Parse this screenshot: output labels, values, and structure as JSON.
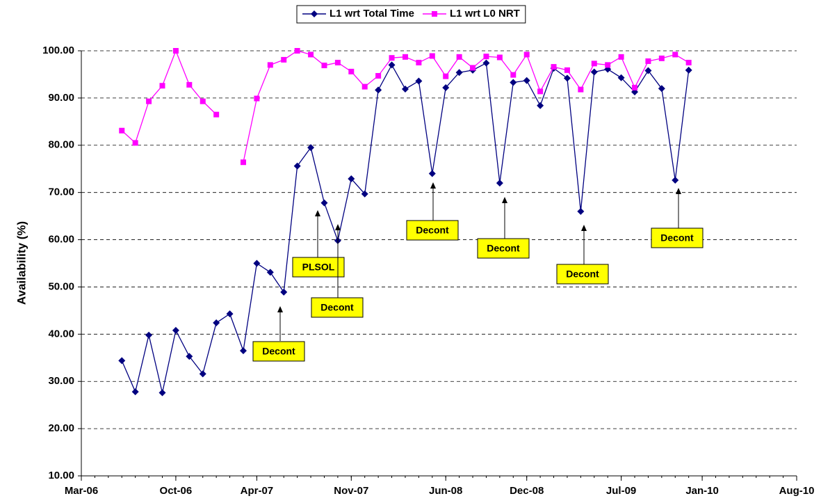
{
  "chart_data": {
    "type": "line",
    "y_label": "Availability (%)",
    "x": [
      "2006-06",
      "2006-07",
      "2006-08",
      "2006-09",
      "2006-10",
      "2006-11",
      "2006-12",
      "2007-01",
      "2007-02",
      "2007-03",
      "2007-04",
      "2007-05",
      "2007-06",
      "2007-07",
      "2007-08",
      "2007-09",
      "2007-10",
      "2007-11",
      "2007-12",
      "2008-01",
      "2008-02",
      "2008-03",
      "2008-04",
      "2008-05",
      "2008-06",
      "2008-07",
      "2008-08",
      "2008-09",
      "2008-10",
      "2008-11",
      "2008-12",
      "2009-01",
      "2009-02",
      "2009-03",
      "2009-04",
      "2009-05",
      "2009-06",
      "2009-07",
      "2009-08",
      "2009-09",
      "2009-10",
      "2009-11",
      "2009-12"
    ],
    "series": [
      {
        "name": "L1 wrt Total Time",
        "color": "#000080",
        "marker": "diamond",
        "values": [
          34.4,
          27.8,
          39.8,
          27.6,
          40.8,
          35.3,
          31.6,
          42.4,
          44.3,
          36.5,
          55.0,
          53.1,
          48.9,
          75.6,
          79.5,
          67.8,
          59.8,
          72.9,
          69.7,
          91.7,
          97.0,
          91.9,
          93.6,
          74.0,
          92.2,
          95.4,
          95.9,
          97.4,
          72.0,
          93.3,
          93.7,
          88.4,
          96.3,
          94.2,
          66.0,
          95.5,
          96.1,
          94.3,
          91.3,
          95.8,
          92.0,
          72.6,
          95.9
        ]
      },
      {
        "name": "L1 wrt L0 NRT",
        "color": "#ff00ff",
        "marker": "square",
        "values": [
          83.1,
          80.5,
          89.3,
          92.6,
          100,
          92.8,
          89.3,
          86.5,
          null,
          76.4,
          89.9,
          97.0,
          98.1,
          100,
          99.2,
          96.9,
          97.5,
          95.6,
          92.4,
          94.7,
          98.5,
          98.7,
          97.5,
          98.9,
          94.6,
          98.7,
          96.4,
          98.8,
          98.6,
          94.9,
          99.2,
          91.4,
          96.6,
          95.9,
          91.8,
          97.3,
          97.0,
          98.7,
          92.2,
          97.8,
          98.4,
          99.2,
          97.5
        ]
      }
    ],
    "xlim": [
      "2006-03",
      "2010-08"
    ],
    "xticks": [
      {
        "value": "2006-03",
        "label": "Mar-06"
      },
      {
        "value": "2006-10",
        "label": "Oct-06"
      },
      {
        "value": "2007-04",
        "label": "Apr-07"
      },
      {
        "value": "2007-11",
        "label": "Nov-07"
      },
      {
        "value": "2008-06",
        "label": "Jun-08"
      },
      {
        "value": "2008-12",
        "label": "Dec-08"
      },
      {
        "value": "2009-07",
        "label": "Jul-09"
      },
      {
        "value": "2010-01",
        "label": "Jan-10"
      },
      {
        "value": "2010-08",
        "label": "Aug-10"
      }
    ],
    "ylim": [
      10,
      100
    ],
    "yticks": [
      {
        "value": 10,
        "label": "10.00"
      },
      {
        "value": 20,
        "label": "20.00"
      },
      {
        "value": 30,
        "label": "30.00"
      },
      {
        "value": 40,
        "label": "40.00"
      },
      {
        "value": 50,
        "label": "50.00"
      },
      {
        "value": 60,
        "label": "60.00"
      },
      {
        "value": 70,
        "label": "70.00"
      },
      {
        "value": 80,
        "label": "80.00"
      },
      {
        "value": 90,
        "label": "90.00"
      },
      {
        "value": 100,
        "label": "100.00"
      }
    ],
    "grid": true,
    "legend": "top",
    "annotations": [
      {
        "text": "Decont"
      },
      {
        "text": "PLSOL"
      },
      {
        "text": "Decont"
      },
      {
        "text": "Decont"
      },
      {
        "text": "Decont"
      },
      {
        "text": "Decont"
      },
      {
        "text": "Decont"
      }
    ]
  }
}
